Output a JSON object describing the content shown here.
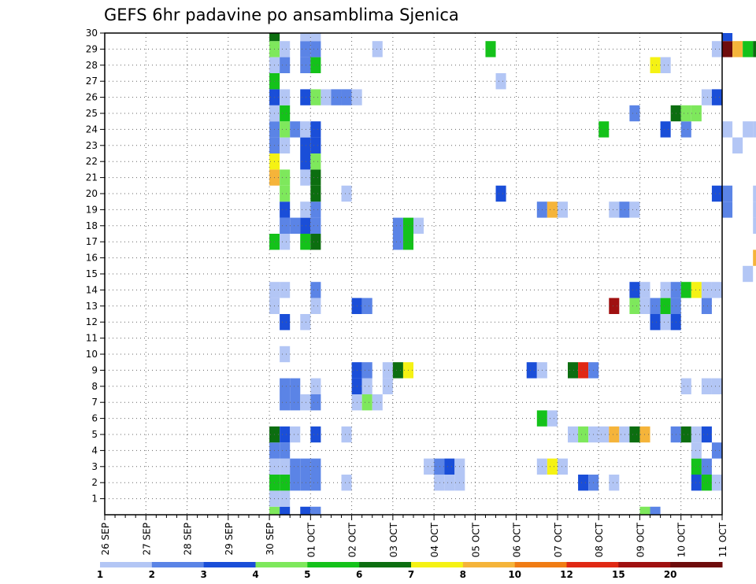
{
  "chart_data": {
    "type": "heatmap",
    "title": "GEFS 6hr padavine po ansamblima Sjenica",
    "xlabel": "",
    "ylabel": "",
    "y_ticks": [
      1,
      2,
      3,
      4,
      5,
      6,
      7,
      8,
      9,
      10,
      11,
      12,
      13,
      14,
      15,
      16,
      17,
      18,
      19,
      20,
      21,
      22,
      23,
      24,
      25,
      26,
      27,
      28,
      29,
      30
    ],
    "x_ticks": [
      "26 SEP",
      "27 SEP",
      "28 SEP",
      "29 SEP",
      "30 SEP",
      "01 OCT",
      "02 OCT",
      "03 OCT",
      "04 OCT",
      "05 OCT",
      "06 OCT",
      "07 OCT",
      "08 OCT",
      "09 OCT",
      "10 OCT",
      "11 OCT"
    ],
    "x_unit": "6-hour step (4 per day) starting 26 SEP 00Z",
    "ylim": [
      0,
      30
    ],
    "grid": true,
    "colorbar": {
      "levels": [
        "1",
        "2",
        "3",
        "4",
        "5",
        "6",
        "7",
        "8",
        "10",
        "12",
        "15",
        "20"
      ],
      "colors": [
        "#b3c6f5",
        "#5b84e6",
        "#1a4ed8",
        "#7ee85c",
        "#14c21a",
        "#0c6e10",
        "#f5f214",
        "#f5b43a",
        "#f07c14",
        "#e02814",
        "#a01010",
        "#6e0c0c"
      ]
    },
    "cells": [
      [
        16,
        0,
        "#7ee85c"
      ],
      [
        17,
        0,
        "#1a4ed8"
      ],
      [
        19,
        0,
        "#1a4ed8"
      ],
      [
        20,
        0,
        "#5b84e6"
      ],
      [
        52,
        0,
        "#7ee85c"
      ],
      [
        53,
        0,
        "#5b84e6"
      ],
      [
        16,
        1,
        "#b3c6f5"
      ],
      [
        17,
        1,
        "#b3c6f5"
      ],
      [
        16,
        2,
        "#14c21a"
      ],
      [
        17,
        2,
        "#14c21a"
      ],
      [
        18,
        2,
        "#5b84e6"
      ],
      [
        19,
        2,
        "#5b84e6"
      ],
      [
        20,
        2,
        "#5b84e6"
      ],
      [
        23,
        2,
        "#b3c6f5"
      ],
      [
        32,
        2,
        "#b3c6f5"
      ],
      [
        33,
        2,
        "#b3c6f5"
      ],
      [
        34,
        2,
        "#b3c6f5"
      ],
      [
        46,
        2,
        "#1a4ed8"
      ],
      [
        47,
        2,
        "#5b84e6"
      ],
      [
        49,
        2,
        "#b3c6f5"
      ],
      [
        57,
        2,
        "#1a4ed8"
      ],
      [
        58,
        2,
        "#14c21a"
      ],
      [
        59,
        2,
        "#b3c6f5"
      ],
      [
        16,
        3,
        "#b3c6f5"
      ],
      [
        17,
        3,
        "#b3c6f5"
      ],
      [
        18,
        3,
        "#5b84e6"
      ],
      [
        19,
        3,
        "#5b84e6"
      ],
      [
        20,
        3,
        "#5b84e6"
      ],
      [
        31,
        3,
        "#b3c6f5"
      ],
      [
        32,
        3,
        "#5b84e6"
      ],
      [
        33,
        3,
        "#1a4ed8"
      ],
      [
        34,
        3,
        "#b3c6f5"
      ],
      [
        42,
        3,
        "#b3c6f5"
      ],
      [
        43,
        3,
        "#f5f214"
      ],
      [
        44,
        3,
        "#b3c6f5"
      ],
      [
        57,
        3,
        "#14c21a"
      ],
      [
        58,
        3,
        "#5b84e6"
      ],
      [
        16,
        4,
        "#5b84e6"
      ],
      [
        17,
        4,
        "#5b84e6"
      ],
      [
        57,
        4,
        "#b3c6f5"
      ],
      [
        59,
        4,
        "#5b84e6"
      ],
      [
        16,
        5,
        "#0c6e10"
      ],
      [
        17,
        5,
        "#1a4ed8"
      ],
      [
        18,
        5,
        "#b3c6f5"
      ],
      [
        20,
        5,
        "#1a4ed8"
      ],
      [
        23,
        5,
        "#b3c6f5"
      ],
      [
        45,
        5,
        "#b3c6f5"
      ],
      [
        46,
        5,
        "#7ee85c"
      ],
      [
        47,
        5,
        "#b3c6f5"
      ],
      [
        48,
        5,
        "#b3c6f5"
      ],
      [
        49,
        5,
        "#f5b43a"
      ],
      [
        50,
        5,
        "#b3c6f5"
      ],
      [
        51,
        5,
        "#0c6e10"
      ],
      [
        52,
        5,
        "#f5b43a"
      ],
      [
        55,
        5,
        "#5b84e6"
      ],
      [
        56,
        5,
        "#0c6e10"
      ],
      [
        57,
        5,
        "#b3c6f5"
      ],
      [
        58,
        5,
        "#1a4ed8"
      ],
      [
        42,
        6,
        "#14c21a"
      ],
      [
        43,
        6,
        "#b3c6f5"
      ],
      [
        17,
        7,
        "#5b84e6"
      ],
      [
        18,
        7,
        "#5b84e6"
      ],
      [
        19,
        7,
        "#b3c6f5"
      ],
      [
        20,
        7,
        "#5b84e6"
      ],
      [
        24,
        7,
        "#b3c6f5"
      ],
      [
        25,
        7,
        "#7ee85c"
      ],
      [
        26,
        7,
        "#b3c6f5"
      ],
      [
        17,
        8,
        "#5b84e6"
      ],
      [
        18,
        8,
        "#5b84e6"
      ],
      [
        20,
        8,
        "#b3c6f5"
      ],
      [
        24,
        8,
        "#1a4ed8"
      ],
      [
        25,
        8,
        "#b3c6f5"
      ],
      [
        27,
        8,
        "#b3c6f5"
      ],
      [
        56,
        8,
        "#b3c6f5"
      ],
      [
        58,
        8,
        "#b3c6f5"
      ],
      [
        59,
        8,
        "#b3c6f5"
      ],
      [
        24,
        9,
        "#1a4ed8"
      ],
      [
        25,
        9,
        "#5b84e6"
      ],
      [
        27,
        9,
        "#b3c6f5"
      ],
      [
        28,
        9,
        "#0c6e10"
      ],
      [
        29,
        9,
        "#f5f214"
      ],
      [
        41,
        9,
        "#1a4ed8"
      ],
      [
        42,
        9,
        "#b3c6f5"
      ],
      [
        45,
        9,
        "#0c6e10"
      ],
      [
        46,
        9,
        "#e02814"
      ],
      [
        47,
        9,
        "#5b84e6"
      ],
      [
        17,
        10,
        "#b3c6f5"
      ],
      [
        17,
        12,
        "#1a4ed8"
      ],
      [
        19,
        12,
        "#b3c6f5"
      ],
      [
        53,
        12,
        "#1a4ed8"
      ],
      [
        54,
        12,
        "#b3c6f5"
      ],
      [
        55,
        12,
        "#1a4ed8"
      ],
      [
        16,
        13,
        "#b3c6f5"
      ],
      [
        20,
        13,
        "#b3c6f5"
      ],
      [
        24,
        13,
        "#1a4ed8"
      ],
      [
        25,
        13,
        "#5b84e6"
      ],
      [
        49,
        13,
        "#a01010"
      ],
      [
        51,
        13,
        "#7ee85c"
      ],
      [
        52,
        13,
        "#b3c6f5"
      ],
      [
        53,
        13,
        "#5b84e6"
      ],
      [
        54,
        13,
        "#14c21a"
      ],
      [
        55,
        13,
        "#5b84e6"
      ],
      [
        58,
        13,
        "#5b84e6"
      ],
      [
        16,
        14,
        "#b3c6f5"
      ],
      [
        17,
        14,
        "#b3c6f5"
      ],
      [
        20,
        14,
        "#5b84e6"
      ],
      [
        51,
        14,
        "#1a4ed8"
      ],
      [
        52,
        14,
        "#b3c6f5"
      ],
      [
        54,
        14,
        "#b3c6f5"
      ],
      [
        55,
        14,
        "#5b84e6"
      ],
      [
        56,
        14,
        "#14c21a"
      ],
      [
        57,
        14,
        "#f5f214"
      ],
      [
        58,
        14,
        "#b3c6f5"
      ],
      [
        59,
        14,
        "#b3c6f5"
      ],
      [
        62,
        15,
        "#b3c6f5"
      ],
      [
        63,
        16,
        "#f5b43a"
      ],
      [
        64,
        16,
        "#5b84e6"
      ],
      [
        65,
        16,
        "#b3c6f5"
      ],
      [
        16,
        17,
        "#14c21a"
      ],
      [
        17,
        17,
        "#b3c6f5"
      ],
      [
        19,
        17,
        "#14c21a"
      ],
      [
        20,
        17,
        "#0c6e10"
      ],
      [
        28,
        17,
        "#5b84e6"
      ],
      [
        29,
        17,
        "#14c21a"
      ],
      [
        17,
        18,
        "#5b84e6"
      ],
      [
        18,
        18,
        "#5b84e6"
      ],
      [
        19,
        18,
        "#1a4ed8"
      ],
      [
        20,
        18,
        "#5b84e6"
      ],
      [
        28,
        18,
        "#5b84e6"
      ],
      [
        29,
        18,
        "#14c21a"
      ],
      [
        30,
        18,
        "#b3c6f5"
      ],
      [
        63,
        18,
        "#b3c6f5"
      ],
      [
        65,
        18,
        "#b3c6f5"
      ],
      [
        17,
        19,
        "#1a4ed8"
      ],
      [
        19,
        19,
        "#b3c6f5"
      ],
      [
        20,
        19,
        "#5b84e6"
      ],
      [
        42,
        19,
        "#5b84e6"
      ],
      [
        43,
        19,
        "#f5b43a"
      ],
      [
        44,
        19,
        "#b3c6f5"
      ],
      [
        49,
        19,
        "#b3c6f5"
      ],
      [
        50,
        19,
        "#5b84e6"
      ],
      [
        51,
        19,
        "#b3c6f5"
      ],
      [
        60,
        19,
        "#5b84e6"
      ],
      [
        63,
        19,
        "#b3c6f5"
      ],
      [
        65,
        19,
        "#b3c6f5"
      ],
      [
        17,
        20,
        "#7ee85c"
      ],
      [
        20,
        20,
        "#0c6e10"
      ],
      [
        23,
        20,
        "#b3c6f5"
      ],
      [
        38,
        20,
        "#1a4ed8"
      ],
      [
        59,
        20,
        "#1a4ed8"
      ],
      [
        60,
        20,
        "#5b84e6"
      ],
      [
        63,
        20,
        "#b3c6f5"
      ],
      [
        64,
        20,
        "#5b84e6"
      ],
      [
        65,
        20,
        "#b3c6f5"
      ],
      [
        66,
        20,
        "#7ee85c"
      ],
      [
        16,
        21,
        "#f5b43a"
      ],
      [
        17,
        21,
        "#7ee85c"
      ],
      [
        19,
        21,
        "#b3c6f5"
      ],
      [
        20,
        21,
        "#0c6e10"
      ],
      [
        67,
        21,
        "#b3c6f5"
      ],
      [
        16,
        22,
        "#f5f214"
      ],
      [
        19,
        22,
        "#1a4ed8"
      ],
      [
        20,
        22,
        "#7ee85c"
      ],
      [
        65,
        22,
        "#b3c6f5"
      ],
      [
        16,
        23,
        "#5b84e6"
      ],
      [
        17,
        23,
        "#b3c6f5"
      ],
      [
        19,
        23,
        "#1a4ed8"
      ],
      [
        20,
        23,
        "#1a4ed8"
      ],
      [
        61,
        23,
        "#b3c6f5"
      ],
      [
        67,
        23,
        "#b3c6f5"
      ],
      [
        16,
        24,
        "#5b84e6"
      ],
      [
        17,
        24,
        "#7ee85c"
      ],
      [
        18,
        24,
        "#5b84e6"
      ],
      [
        19,
        24,
        "#b3c6f5"
      ],
      [
        20,
        24,
        "#1a4ed8"
      ],
      [
        48,
        24,
        "#14c21a"
      ],
      [
        54,
        24,
        "#1a4ed8"
      ],
      [
        56,
        24,
        "#5b84e6"
      ],
      [
        60,
        24,
        "#b3c6f5"
      ],
      [
        62,
        24,
        "#b3c6f5"
      ],
      [
        63,
        24,
        "#b3c6f5"
      ],
      [
        64,
        24,
        "#b3c6f5"
      ],
      [
        67,
        24,
        "#b3c6f5"
      ],
      [
        16,
        25,
        "#b3c6f5"
      ],
      [
        17,
        25,
        "#14c21a"
      ],
      [
        51,
        25,
        "#5b84e6"
      ],
      [
        55,
        25,
        "#0c6e10"
      ],
      [
        56,
        25,
        "#7ee85c"
      ],
      [
        57,
        25,
        "#7ee85c"
      ],
      [
        16,
        26,
        "#1a4ed8"
      ],
      [
        17,
        26,
        "#b3c6f5"
      ],
      [
        19,
        26,
        "#1a4ed8"
      ],
      [
        20,
        26,
        "#7ee85c"
      ],
      [
        21,
        26,
        "#b3c6f5"
      ],
      [
        22,
        26,
        "#5b84e6"
      ],
      [
        23,
        26,
        "#5b84e6"
      ],
      [
        24,
        26,
        "#b3c6f5"
      ],
      [
        58,
        26,
        "#b3c6f5"
      ],
      [
        59,
        26,
        "#1a4ed8"
      ],
      [
        16,
        27,
        "#14c21a"
      ],
      [
        38,
        27,
        "#b3c6f5"
      ],
      [
        16,
        28,
        "#b3c6f5"
      ],
      [
        17,
        28,
        "#5b84e6"
      ],
      [
        19,
        28,
        "#5b84e6"
      ],
      [
        20,
        28,
        "#14c21a"
      ],
      [
        53,
        28,
        "#f5f214"
      ],
      [
        54,
        28,
        "#b3c6f5"
      ],
      [
        16,
        29,
        "#7ee85c"
      ],
      [
        17,
        29,
        "#b3c6f5"
      ],
      [
        19,
        29,
        "#5b84e6"
      ],
      [
        20,
        29,
        "#5b84e6"
      ],
      [
        26,
        29,
        "#b3c6f5"
      ],
      [
        37,
        29,
        "#14c21a"
      ],
      [
        59,
        29,
        "#b3c6f5"
      ],
      [
        60,
        29,
        "#6e0c0c"
      ],
      [
        61,
        29,
        "#f5b43a"
      ],
      [
        62,
        29,
        "#14c21a"
      ],
      [
        63,
        29,
        "#0c6e10"
      ],
      [
        16,
        30,
        "#0c6e10"
      ],
      [
        19,
        30,
        "#b3c6f5"
      ],
      [
        20,
        30,
        "#b3c6f5"
      ],
      [
        60,
        30,
        "#1a4ed8"
      ]
    ]
  }
}
